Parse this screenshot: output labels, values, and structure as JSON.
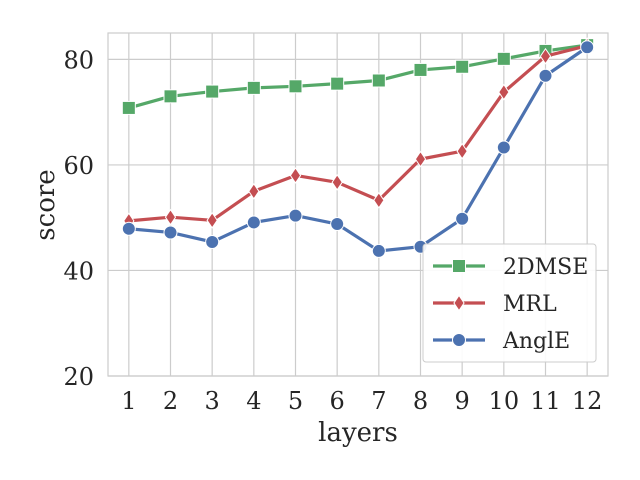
{
  "chart_data": {
    "type": "line",
    "xlabel": "layers",
    "ylabel": "score",
    "x": [
      1,
      2,
      3,
      4,
      5,
      6,
      7,
      8,
      9,
      10,
      11,
      12
    ],
    "ylim": [
      20,
      85
    ],
    "yticks": [
      20,
      40,
      60,
      80
    ],
    "grid": true,
    "legend_position": "lower-right",
    "series": [
      {
        "name": "2DMSE",
        "color": "#55a868",
        "marker": "square",
        "values": [
          70.8,
          73.0,
          73.9,
          74.6,
          74.9,
          75.4,
          76.0,
          78.0,
          78.6,
          80.1,
          81.6,
          82.7
        ]
      },
      {
        "name": "MRL",
        "color": "#c44e52",
        "marker": "diamond",
        "values": [
          49.4,
          50.1,
          49.5,
          55.0,
          58.0,
          56.7,
          53.3,
          61.1,
          62.6,
          73.8,
          80.6,
          82.6
        ]
      },
      {
        "name": "AnglE",
        "color": "#4c72b0",
        "marker": "circle",
        "values": [
          47.9,
          47.2,
          45.4,
          49.1,
          50.4,
          48.8,
          43.7,
          44.5,
          49.8,
          63.3,
          76.9,
          82.3
        ]
      }
    ]
  }
}
